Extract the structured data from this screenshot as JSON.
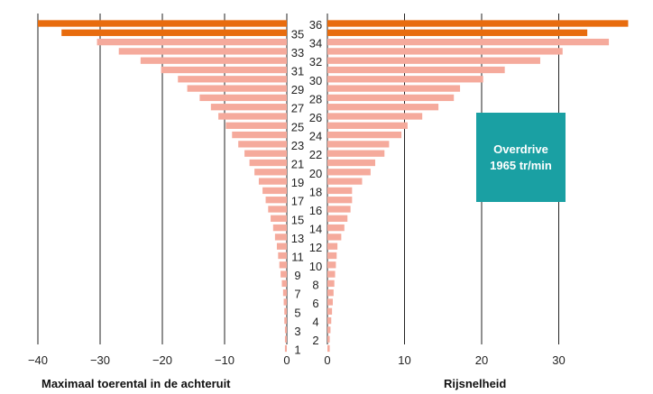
{
  "chart_data": {
    "type": "bar",
    "orientation": "horizontal-butterfly",
    "gears": [
      1,
      2,
      3,
      4,
      5,
      6,
      7,
      8,
      9,
      10,
      11,
      12,
      13,
      14,
      15,
      16,
      17,
      18,
      19,
      20,
      21,
      22,
      23,
      24,
      25,
      26,
      27,
      28,
      29,
      30,
      31,
      32,
      33,
      34,
      35,
      36
    ],
    "left": {
      "xlabel": "Maximaal toerental in de achteruit",
      "ticks": [
        -40,
        -30,
        -20,
        -10,
        0
      ],
      "xlim": [
        -40,
        0
      ],
      "values": [
        -0.3,
        -0.3,
        -0.3,
        -0.4,
        -0.4,
        -0.5,
        -0.6,
        -0.8,
        -1.0,
        -1.2,
        -1.4,
        -1.6,
        -1.9,
        -2.2,
        -2.6,
        -3.0,
        -3.4,
        -3.9,
        -4.5,
        -5.2,
        -6.0,
        -6.8,
        -7.8,
        -8.8,
        -9.8,
        -11.0,
        -12.2,
        -14.0,
        -16.0,
        -17.5,
        -20.2,
        -23.5,
        -27.0,
        -30.5,
        -36.2,
        -40.0
      ]
    },
    "right": {
      "xlabel": "Rijsnelheid",
      "ticks": [
        0,
        10,
        20,
        30
      ],
      "xlim": [
        0,
        39
      ],
      "values": [
        0.3,
        0.3,
        0.4,
        0.5,
        0.6,
        0.7,
        0.8,
        0.9,
        1.0,
        1.1,
        1.2,
        1.3,
        1.8,
        2.2,
        2.6,
        3.0,
        3.2,
        3.2,
        4.5,
        5.6,
        6.2,
        7.4,
        8.0,
        9.6,
        10.4,
        12.3,
        14.4,
        16.4,
        17.2,
        20.2,
        23.0,
        27.6,
        30.5,
        36.5,
        33.7,
        39.0
      ]
    },
    "highlight_gears": [
      35,
      36
    ],
    "colors": {
      "bar": "#f5aa9c",
      "highlight": "#e86c0e",
      "grid": "#222222",
      "badge": "#1aa0a3"
    },
    "annotation": {
      "line1": "Overdrive",
      "line2": "1965 tr/min"
    }
  }
}
